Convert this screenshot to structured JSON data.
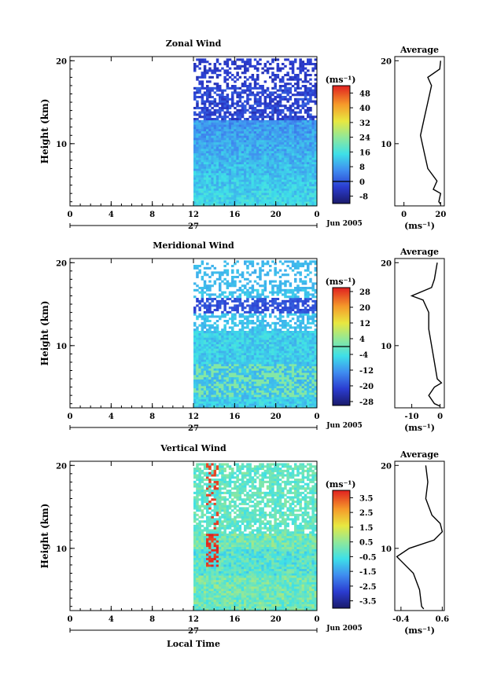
{
  "figure": {
    "xlabel": "Local Time",
    "date_label": "Jun 2005",
    "day_label": "27",
    "cbar_unit": "(ms⁻¹)",
    "avg_title": "Average",
    "avg_unit": "(ms⁻¹)"
  },
  "chart_data": [
    {
      "type": "heatmap",
      "title": "Zonal Wind",
      "ylabel": "Height (km)",
      "xlim": [
        0,
        24
      ],
      "ylim": [
        2.5,
        20.5
      ],
      "x_ticks": [
        "0",
        "4",
        "8",
        "12",
        "16",
        "20",
        "0"
      ],
      "y_ticks": [
        "10",
        "20"
      ],
      "data_start_hour": 12,
      "colorbar": {
        "ticks": [
          "-8",
          "0",
          "8",
          "16",
          "24",
          "32",
          "40",
          "48"
        ],
        "range": [
          -12,
          52
        ]
      },
      "average_profile": {
        "xlim": [
          -5,
          22
        ],
        "x_ticks": [
          "0",
          "20"
        ],
        "points": [
          [
            20,
            20
          ],
          [
            19.5,
            19
          ],
          [
            13,
            18
          ],
          [
            15,
            17
          ],
          [
            13,
            15
          ],
          [
            11,
            13
          ],
          [
            9,
            11
          ],
          [
            11,
            9
          ],
          [
            13,
            7
          ],
          [
            18,
            5.5
          ],
          [
            16,
            4.5
          ],
          [
            20,
            4
          ],
          [
            19,
            3
          ],
          [
            20,
            2.7
          ]
        ]
      }
    },
    {
      "type": "heatmap",
      "title": "Meridional Wind",
      "ylabel": "Height (km)",
      "xlim": [
        0,
        24
      ],
      "ylim": [
        2.5,
        20.5
      ],
      "x_ticks": [
        "0",
        "4",
        "8",
        "12",
        "16",
        "20",
        "0"
      ],
      "y_ticks": [
        "10",
        "20"
      ],
      "data_start_hour": 12,
      "colorbar": {
        "ticks": [
          "-28",
          "-20",
          "-12",
          "-4",
          "4",
          "12",
          "20",
          "28"
        ],
        "range": [
          -30,
          30
        ]
      },
      "average_profile": {
        "xlim": [
          -16,
          1.5
        ],
        "x_ticks": [
          "-10",
          "0"
        ],
        "points": [
          [
            -1,
            20
          ],
          [
            -2,
            18
          ],
          [
            -3,
            17
          ],
          [
            -10,
            16
          ],
          [
            -6,
            15.5
          ],
          [
            -4,
            14
          ],
          [
            -4,
            12
          ],
          [
            -3,
            10
          ],
          [
            -2,
            8
          ],
          [
            -1,
            6
          ],
          [
            0.5,
            5.5
          ],
          [
            -2,
            5
          ],
          [
            -4,
            4
          ],
          [
            -2,
            3
          ],
          [
            0,
            2.7
          ]
        ]
      }
    },
    {
      "type": "heatmap",
      "title": "Vertical Wind",
      "ylabel": "Height (km)",
      "xlim": [
        0,
        24
      ],
      "ylim": [
        2.5,
        20.5
      ],
      "x_ticks": [
        "0",
        "4",
        "8",
        "12",
        "16",
        "20",
        "0"
      ],
      "y_ticks": [
        "10",
        "20"
      ],
      "data_start_hour": 12,
      "colorbar": {
        "ticks": [
          "-3.5",
          "-2.5",
          "-1.5",
          "-0.5",
          "0.5",
          "1.5",
          "2.5",
          "3.5"
        ],
        "range": [
          -4,
          4
        ]
      },
      "average_profile": {
        "xlim": [
          -0.55,
          0.65
        ],
        "x_ticks": [
          "-0.4",
          "0.6"
        ],
        "points": [
          [
            0.2,
            20
          ],
          [
            0.25,
            18
          ],
          [
            0.2,
            16
          ],
          [
            0.35,
            14
          ],
          [
            0.55,
            13
          ],
          [
            0.6,
            12
          ],
          [
            0.4,
            11
          ],
          [
            -0.2,
            10
          ],
          [
            -0.5,
            9
          ],
          [
            -0.1,
            7
          ],
          [
            0.05,
            5
          ],
          [
            0.1,
            3
          ],
          [
            0.15,
            2.7
          ]
        ]
      }
    }
  ]
}
